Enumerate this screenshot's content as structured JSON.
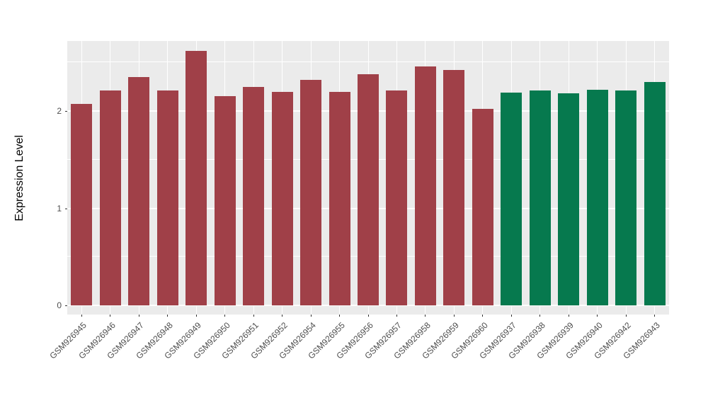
{
  "chart_data": {
    "type": "bar",
    "title": "",
    "xlabel": "",
    "ylabel": "Expression Level",
    "ylim": [
      0,
      2.72
    ],
    "yticks": [
      0,
      1,
      2
    ],
    "grid": "on",
    "legend_position": "none",
    "panel_background": "#EBEBEB",
    "gridline_color": "#FFFFFF",
    "axis_text_color": "#4D4D4D",
    "categories": [
      "GSM926945",
      "GSM926946",
      "GSM926947",
      "GSM926948",
      "GSM926949",
      "GSM926950",
      "GSM926951",
      "GSM926952",
      "GSM926954",
      "GSM926955",
      "GSM926956",
      "GSM926957",
      "GSM926958",
      "GSM926959",
      "GSM926960",
      "GSM926937",
      "GSM926938",
      "GSM926939",
      "GSM926940",
      "GSM926942",
      "GSM926943"
    ],
    "values": [
      2.07,
      2.21,
      2.35,
      2.21,
      2.62,
      2.15,
      2.25,
      2.2,
      2.32,
      2.2,
      2.38,
      2.21,
      2.46,
      2.42,
      2.02,
      2.19,
      2.21,
      2.18,
      2.22,
      2.21,
      2.3
    ],
    "groups": [
      "group1",
      "group1",
      "group1",
      "group1",
      "group1",
      "group1",
      "group1",
      "group1",
      "group1",
      "group1",
      "group1",
      "group1",
      "group1",
      "group1",
      "group1",
      "group2",
      "group2",
      "group2",
      "group2",
      "group2",
      "group2"
    ],
    "group_colors": {
      "group1": "#A04048",
      "group2": "#06794E"
    }
  }
}
